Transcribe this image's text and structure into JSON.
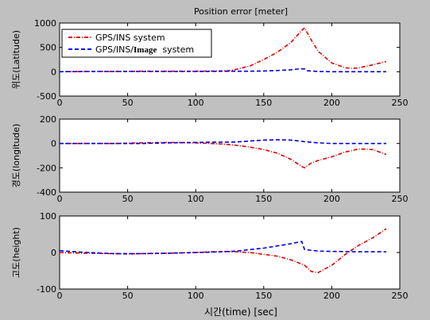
{
  "figure": {
    "title": "Position error [meter]",
    "xlabel": "시간(time) [sec]"
  },
  "legend": {
    "items": [
      {
        "label": "GPS/INS system",
        "color": "#e00000",
        "dash": "dashdot"
      },
      {
        "label_prefix": "GPS/INS/",
        "label_bold": "Image",
        "label_suffix": "  system",
        "color": "#0000e0",
        "dash": "dashed"
      }
    ]
  },
  "chart_data": [
    {
      "type": "line",
      "title": "Position error [meter]",
      "xlabel": "",
      "ylabel": "위도(Latitude)",
      "xlim": [
        0,
        250
      ],
      "ylim": [
        -500,
        1000
      ],
      "xticks": [
        0,
        50,
        100,
        150,
        200,
        250
      ],
      "yticks": [
        -500,
        0,
        500,
        1000
      ],
      "grid": false,
      "legend_position": "top-left",
      "series": [
        {
          "name": "GPS/INS system",
          "color": "#e00000",
          "x": [
            0,
            20,
            40,
            60,
            80,
            100,
            120,
            125,
            130,
            140,
            150,
            160,
            170,
            178,
            180,
            185,
            190,
            200,
            210,
            215,
            220,
            230,
            240
          ],
          "y": [
            0,
            5,
            5,
            10,
            10,
            10,
            15,
            20,
            50,
            120,
            250,
            400,
            600,
            850,
            900,
            650,
            420,
            180,
            80,
            70,
            80,
            140,
            210
          ]
        },
        {
          "name": "GPS/INS/Image system",
          "color": "#0000e0",
          "x": [
            0,
            20,
            40,
            60,
            80,
            100,
            120,
            130,
            140,
            150,
            160,
            170,
            175,
            180,
            182,
            190,
            200,
            210,
            220,
            230,
            240
          ],
          "y": [
            0,
            5,
            5,
            5,
            5,
            5,
            10,
            10,
            10,
            15,
            25,
            40,
            55,
            60,
            20,
            5,
            0,
            0,
            0,
            0,
            0
          ]
        }
      ]
    },
    {
      "type": "line",
      "xlabel": "",
      "ylabel": "경도(longitude)",
      "xlim": [
        0,
        250
      ],
      "ylim": [
        -400,
        200
      ],
      "xticks": [
        0,
        50,
        100,
        150,
        200,
        250
      ],
      "yticks": [
        -400,
        -200,
        0,
        200
      ],
      "grid": false,
      "series": [
        {
          "name": "GPS/INS system",
          "color": "#e00000",
          "x": [
            0,
            20,
            40,
            60,
            80,
            100,
            120,
            130,
            140,
            150,
            160,
            170,
            178,
            180,
            185,
            190,
            200,
            210,
            220,
            230,
            240
          ],
          "y": [
            0,
            0,
            0,
            5,
            8,
            5,
            -5,
            -15,
            -30,
            -50,
            -80,
            -130,
            -190,
            -200,
            -160,
            -140,
            -110,
            -70,
            -45,
            -50,
            -90
          ]
        },
        {
          "name": "GPS/INS/Image system",
          "color": "#0000e0",
          "x": [
            0,
            20,
            40,
            60,
            80,
            100,
            110,
            120,
            130,
            140,
            150,
            160,
            170,
            180,
            190,
            200,
            220,
            240
          ],
          "y": [
            0,
            0,
            0,
            0,
            5,
            8,
            10,
            10,
            12,
            20,
            28,
            30,
            28,
            15,
            5,
            0,
            0,
            0
          ]
        }
      ]
    },
    {
      "type": "line",
      "xlabel": "시간(time) [sec]",
      "ylabel": "고도(height)",
      "xlim": [
        0,
        250
      ],
      "ylim": [
        -100,
        100
      ],
      "xticks": [
        0,
        50,
        100,
        150,
        200,
        250
      ],
      "yticks": [
        -100,
        0,
        100
      ],
      "grid": false,
      "series": [
        {
          "name": "GPS/INS system",
          "color": "#e00000",
          "x": [
            0,
            20,
            40,
            50,
            60,
            80,
            100,
            120,
            130,
            140,
            150,
            160,
            170,
            180,
            185,
            190,
            200,
            210,
            220,
            230,
            240
          ],
          "y": [
            0,
            -2,
            -3,
            -4,
            -3,
            -2,
            0,
            3,
            2,
            0,
            -5,
            -10,
            -20,
            -35,
            -52,
            -55,
            -35,
            -5,
            20,
            40,
            65
          ]
        },
        {
          "name": "GPS/INS/Image system",
          "color": "#0000e0",
          "x": [
            0,
            20,
            40,
            50,
            60,
            80,
            100,
            120,
            130,
            140,
            150,
            160,
            170,
            175,
            178,
            180,
            190,
            200,
            220,
            240
          ],
          "y": [
            5,
            0,
            -3,
            -3,
            -3,
            -2,
            0,
            2,
            4,
            8,
            12,
            18,
            24,
            28,
            30,
            8,
            4,
            3,
            2,
            2
          ]
        }
      ]
    }
  ]
}
